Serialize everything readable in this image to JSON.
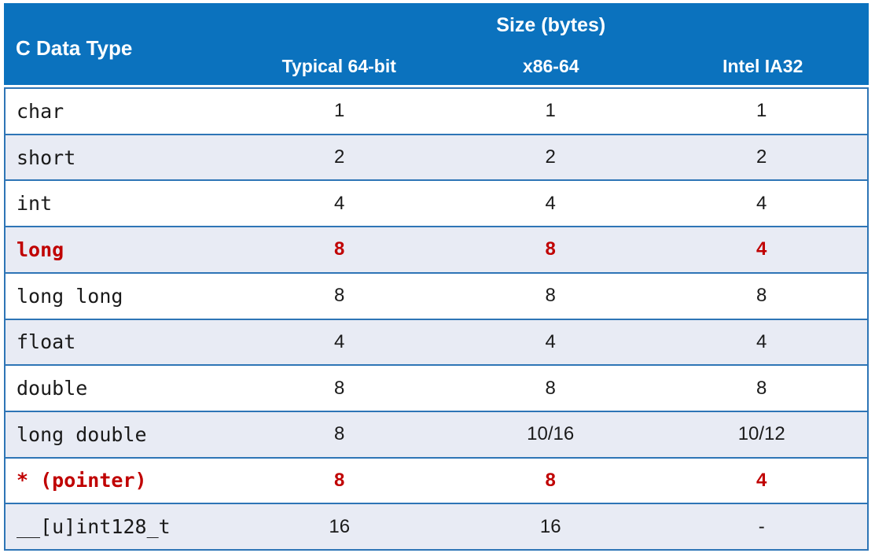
{
  "table": {
    "header": {
      "col1": "C Data Type",
      "group": "Size (bytes)",
      "subcols": [
        "Typical 64-bit",
        "x86-64",
        "Intel IA32"
      ]
    },
    "rows": [
      {
        "type": "char",
        "c1": "1",
        "c2": "1",
        "c3": "1",
        "highlight": false
      },
      {
        "type": "short",
        "c1": "2",
        "c2": "2",
        "c3": "2",
        "highlight": false
      },
      {
        "type": "int",
        "c1": "4",
        "c2": "4",
        "c3": "4",
        "highlight": false
      },
      {
        "type": "long",
        "c1": "8",
        "c2": "8",
        "c3": "4",
        "highlight": true
      },
      {
        "type": "long long",
        "c1": "8",
        "c2": "8",
        "c3": "8",
        "highlight": false
      },
      {
        "type": "float",
        "c1": "4",
        "c2": "4",
        "c3": "4",
        "highlight": false
      },
      {
        "type": "double",
        "c1": "8",
        "c2": "8",
        "c3": "8",
        "highlight": false
      },
      {
        "type": "long double",
        "c1": "8",
        "c2": "10/16",
        "c3": "10/12",
        "highlight": false
      },
      {
        "type": "* (pointer)",
        "c1": "8",
        "c2": "8",
        "c3": "4",
        "highlight": true
      },
      {
        "type": "__[u]int128_t",
        "c1": "16",
        "c2": "16",
        "c3": "-",
        "highlight": false
      }
    ],
    "colors": {
      "header_bg": "#0B72BE",
      "header_text": "#FFFFFF",
      "row_alt_bg": "#E8EBF4",
      "border": "#2E75B6",
      "highlight_text": "#C00000"
    }
  }
}
